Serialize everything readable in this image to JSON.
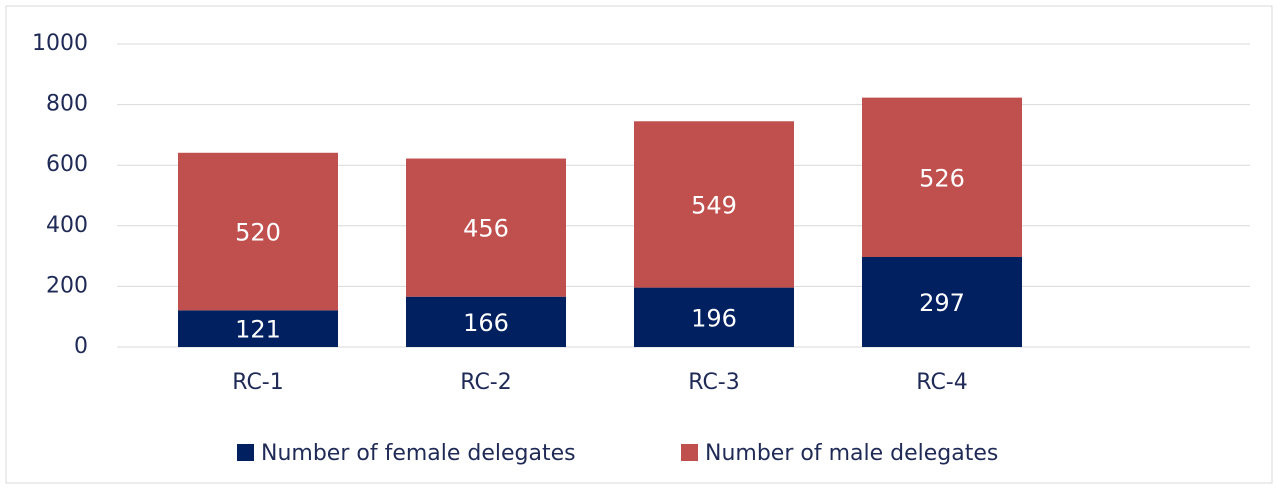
{
  "chart_data": {
    "type": "stacked_bar",
    "categories": [
      "RC-1",
      "RC-2",
      "RC-3",
      "RC-4"
    ],
    "series": [
      {
        "name": "Number of female delegates",
        "color": "#002060",
        "values": [
          121,
          166,
          196,
          297
        ]
      },
      {
        "name": "Number of male delegates",
        "color": "#c0504d",
        "values": [
          520,
          456,
          549,
          526
        ]
      }
    ],
    "ylim": [
      0,
      1000
    ],
    "yticks": [
      0,
      200,
      400,
      600,
      800,
      1000
    ],
    "grid": true,
    "legend": "bottom"
  }
}
